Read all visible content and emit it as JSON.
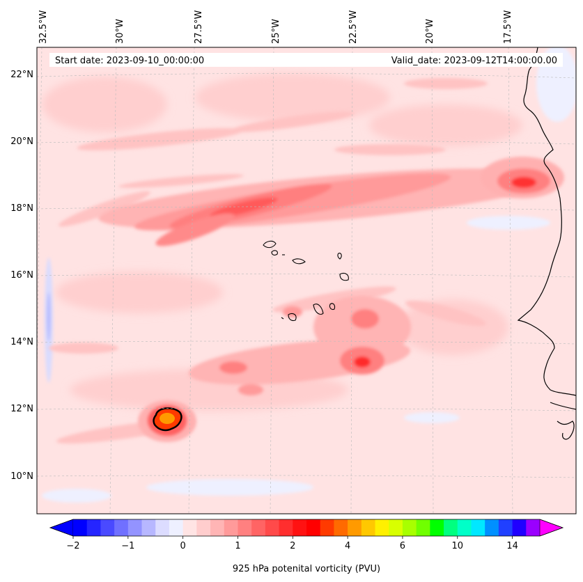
{
  "map": {
    "start_label": "Start date: 2023-09-10_00:00:00",
    "valid_label": "Valid_date: 2023-09-12T14:00:00.00",
    "lon_labels": [
      "32.5°W",
      "30°W",
      "27.5°W",
      "25°W",
      "22.5°W",
      "20°W",
      "17.5°W"
    ],
    "lat_labels": [
      "22°N",
      "20°N",
      "18°N",
      "16°N",
      "14°N",
      "12°N",
      "10°N"
    ],
    "features": {
      "vortex": "closed low-level PV maximum near 11.7°N 28.6°W",
      "band": "elongated PV band 17-19°N",
      "coast": "West African coastline",
      "islands": "Cabo Verde islands"
    }
  },
  "colorbar": {
    "ticks": [
      "−2",
      "−1",
      "0",
      "1",
      "2",
      "4",
      "6",
      "10",
      "14"
    ],
    "label": "925 hPa potenital vorticity (PVU)",
    "colors": [
      "#0000ff",
      "#2525ff",
      "#4a4aff",
      "#7070ff",
      "#9393ff",
      "#b7b7ff",
      "#dcdcff",
      "#eef0ff",
      "#ffe4e4",
      "#ffcdcd",
      "#ffb5b5",
      "#ff9a9a",
      "#ff8080",
      "#ff6464",
      "#ff4a4a",
      "#ff2e2e",
      "#ff1212",
      "#ff0000",
      "#ff3a00",
      "#ff6a00",
      "#ff9a00",
      "#ffc800",
      "#fff000",
      "#d8ff00",
      "#a8ff00",
      "#70ff00",
      "#00ff00",
      "#00ff80",
      "#00ffc8",
      "#00e8ff",
      "#0090ff",
      "#2040ff",
      "#2000ff",
      "#9a00ff"
    ],
    "over_color": "#ff00ff",
    "under_color": "#0000ff"
  }
}
